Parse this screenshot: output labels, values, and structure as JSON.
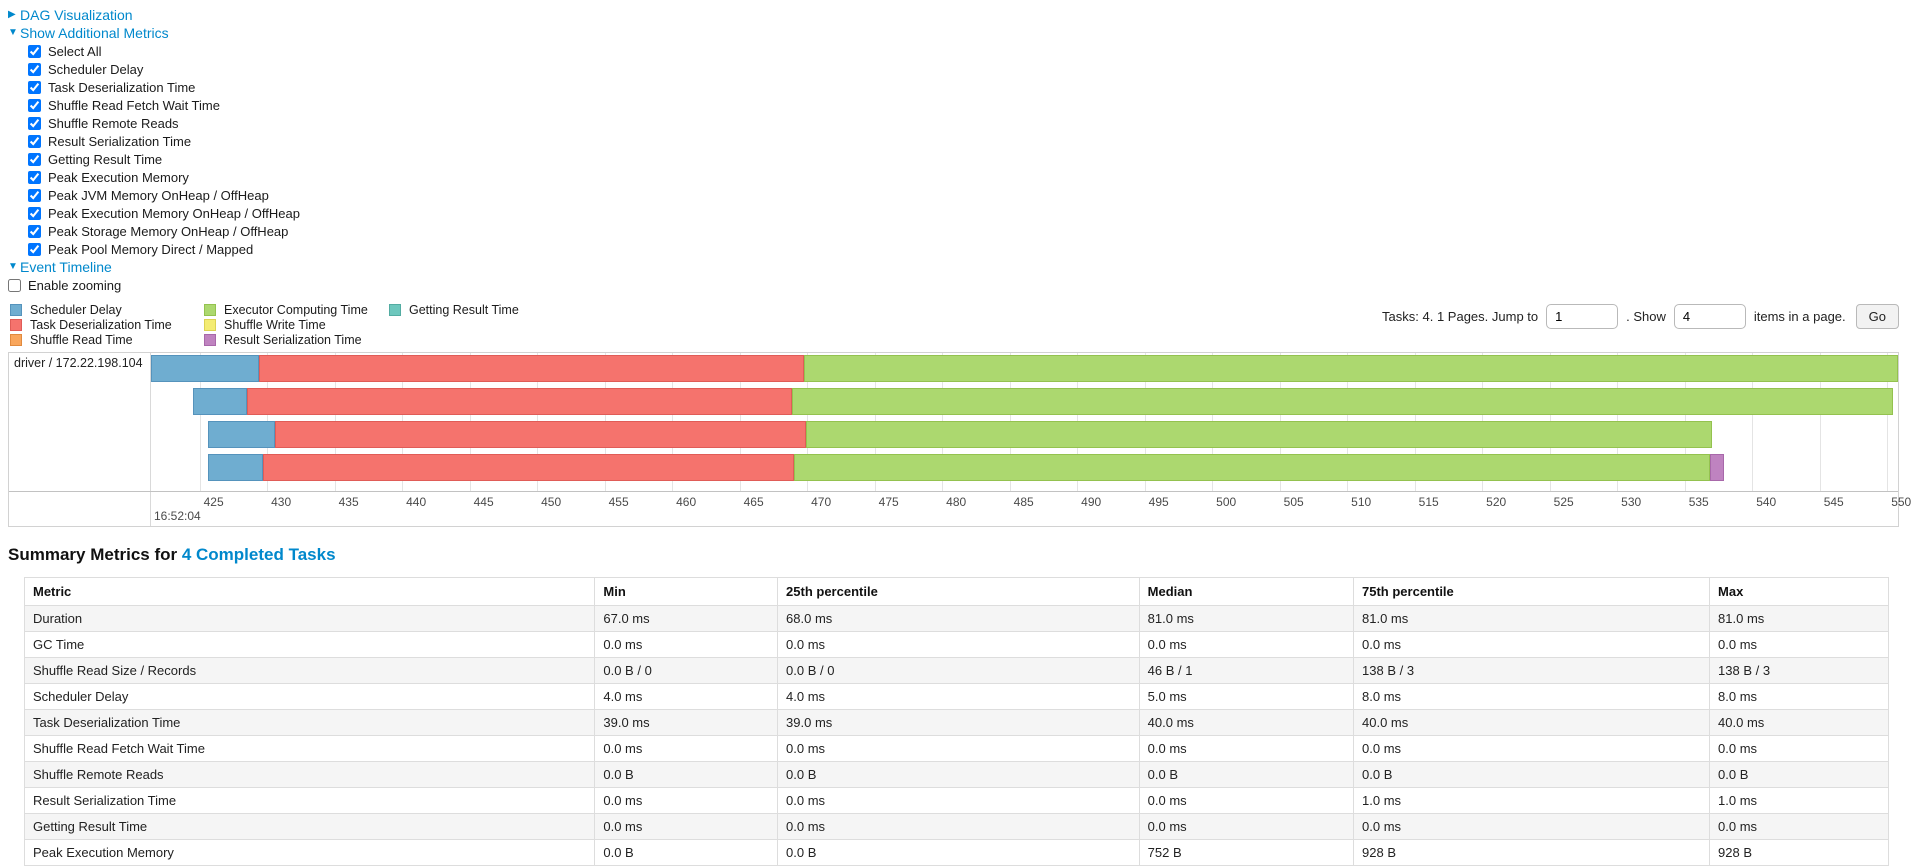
{
  "accent_color": "#0088cc",
  "sections": {
    "dag_label": "DAG Visualization",
    "metrics_label": "Show Additional Metrics",
    "timeline_label": "Event Timeline"
  },
  "metrics_panel": {
    "items": [
      {
        "label": "Select All",
        "checked": true
      },
      {
        "label": "Scheduler Delay",
        "checked": true
      },
      {
        "label": "Task Deserialization Time",
        "checked": true
      },
      {
        "label": "Shuffle Read Fetch Wait Time",
        "checked": true
      },
      {
        "label": "Shuffle Remote Reads",
        "checked": true
      },
      {
        "label": "Result Serialization Time",
        "checked": true
      },
      {
        "label": "Getting Result Time",
        "checked": true
      },
      {
        "label": "Peak Execution Memory",
        "checked": true
      },
      {
        "label": "Peak JVM Memory OnHeap / OffHeap",
        "checked": true
      },
      {
        "label": "Peak Execution Memory OnHeap / OffHeap",
        "checked": true
      },
      {
        "label": "Peak Storage Memory OnHeap / OffHeap",
        "checked": true
      },
      {
        "label": "Peak Pool Memory Direct / Mapped",
        "checked": true
      }
    ]
  },
  "timeline": {
    "enable_zooming_label": "Enable zooming",
    "enable_zooming_checked": false,
    "legend_columns": [
      [
        "scheduler_delay",
        "task_deserialization",
        "shuffle_read"
      ],
      [
        "executor_computing",
        "shuffle_write",
        "result_serialization"
      ],
      [
        "getting_result"
      ]
    ]
  },
  "segments": {
    "scheduler_delay": {
      "label": "Scheduler Delay",
      "fill": "#6FADD0",
      "border": "#5593BC"
    },
    "task_deserialization": {
      "label": "Task Deserialization Time",
      "fill": "#F5736D",
      "border": "#E05C57"
    },
    "shuffle_read": {
      "label": "Shuffle Read Time",
      "fill": "#F9A65C",
      "border": "#E18A3E"
    },
    "executor_computing": {
      "label": "Executor Computing Time",
      "fill": "#ACD86F",
      "border": "#94C24F"
    },
    "shuffle_write": {
      "label": "Shuffle Write Time",
      "fill": "#F4EC72",
      "border": "#DCD254"
    },
    "result_serialization": {
      "label": "Result Serialization Time",
      "fill": "#BF83C0",
      "border": "#A868AA"
    },
    "getting_result": {
      "label": "Getting Result Time",
      "fill": "#6DC7BD",
      "border": "#53ACA2"
    }
  },
  "pagination": {
    "prefix": "Tasks: 4. 1 Pages. Jump to",
    "jump_value": "1",
    "mid": ". Show",
    "show_value": "4",
    "suffix": "items in a page.",
    "go_label": "Go"
  },
  "chart_data": {
    "type": "timeline-gantt",
    "row_label": "driver / 172.22.198.104",
    "axis": {
      "start": 421.4,
      "end": 550.8,
      "tick_values": [
        425,
        430,
        435,
        440,
        445,
        450,
        455,
        460,
        465,
        470,
        475,
        480,
        485,
        490,
        495,
        500,
        505,
        510,
        515,
        520,
        525,
        530,
        535,
        540,
        545,
        550
      ],
      "unit": "ms within second",
      "major_label": "16:52:04"
    },
    "tasks": [
      {
        "segments": [
          {
            "type": "scheduler_delay",
            "start": 421.4,
            "end": 429.4
          },
          {
            "type": "task_deserialization",
            "start": 429.4,
            "end": 469.8
          },
          {
            "type": "executor_computing",
            "start": 469.8,
            "end": 550.8
          }
        ]
      },
      {
        "segments": [
          {
            "type": "scheduler_delay",
            "start": 424.5,
            "end": 428.5
          },
          {
            "type": "task_deserialization",
            "start": 428.5,
            "end": 468.9
          },
          {
            "type": "executor_computing",
            "start": 468.9,
            "end": 550.4
          }
        ]
      },
      {
        "segments": [
          {
            "type": "scheduler_delay",
            "start": 425.6,
            "end": 430.6
          },
          {
            "type": "task_deserialization",
            "start": 430.6,
            "end": 469.9
          },
          {
            "type": "executor_computing",
            "start": 469.9,
            "end": 537.0
          }
        ]
      },
      {
        "segments": [
          {
            "type": "scheduler_delay",
            "start": 425.6,
            "end": 429.7
          },
          {
            "type": "task_deserialization",
            "start": 429.7,
            "end": 469.0
          },
          {
            "type": "executor_computing",
            "start": 469.0,
            "end": 536.9
          },
          {
            "type": "result_serialization",
            "start": 536.9,
            "end": 537.9
          }
        ]
      }
    ]
  },
  "summary": {
    "title_prefix": "Summary Metrics for ",
    "title_link": "4 Completed Tasks",
    "columns": [
      "Metric",
      "Min",
      "25th percentile",
      "Median",
      "75th percentile",
      "Max"
    ],
    "rows": [
      [
        "Duration",
        "67.0 ms",
        "68.0 ms",
        "81.0 ms",
        "81.0 ms",
        "81.0 ms"
      ],
      [
        "GC Time",
        "0.0 ms",
        "0.0 ms",
        "0.0 ms",
        "0.0 ms",
        "0.0 ms"
      ],
      [
        "Shuffle Read Size / Records",
        "0.0 B / 0",
        "0.0 B / 0",
        "46 B / 1",
        "138 B / 3",
        "138 B / 3"
      ],
      [
        "Scheduler Delay",
        "4.0 ms",
        "4.0 ms",
        "5.0 ms",
        "8.0 ms",
        "8.0 ms"
      ],
      [
        "Task Deserialization Time",
        "39.0 ms",
        "39.0 ms",
        "40.0 ms",
        "40.0 ms",
        "40.0 ms"
      ],
      [
        "Shuffle Read Fetch Wait Time",
        "0.0 ms",
        "0.0 ms",
        "0.0 ms",
        "0.0 ms",
        "0.0 ms"
      ],
      [
        "Shuffle Remote Reads",
        "0.0 B",
        "0.0 B",
        "0.0 B",
        "0.0 B",
        "0.0 B"
      ],
      [
        "Result Serialization Time",
        "0.0 ms",
        "0.0 ms",
        "0.0 ms",
        "1.0 ms",
        "1.0 ms"
      ],
      [
        "Getting Result Time",
        "0.0 ms",
        "0.0 ms",
        "0.0 ms",
        "0.0 ms",
        "0.0 ms"
      ],
      [
        "Peak Execution Memory",
        "0.0 B",
        "0.0 B",
        "752 B",
        "928 B",
        "928 B"
      ]
    ]
  }
}
